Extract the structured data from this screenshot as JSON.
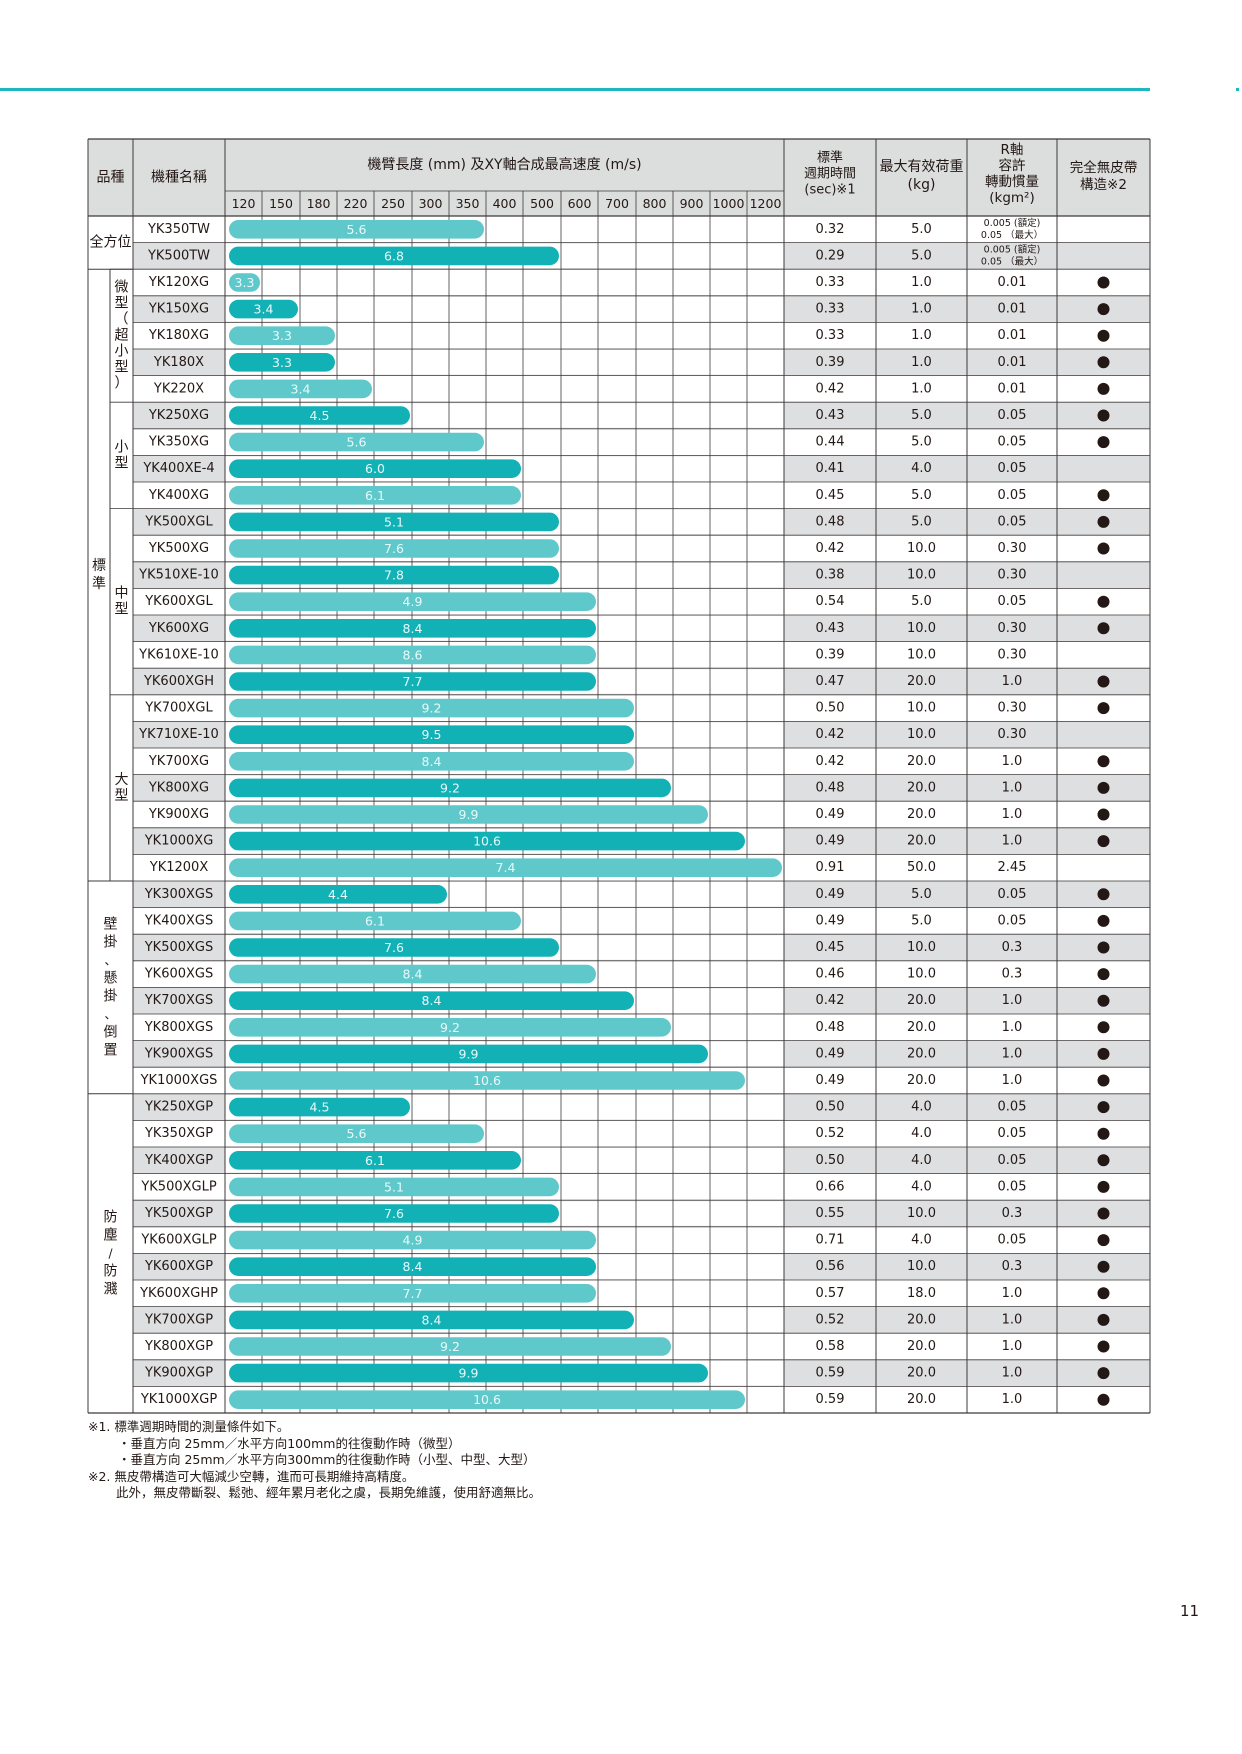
{
  "headers": {
    "category": "品種",
    "model": "機種名稱",
    "arm": "機臂長度 (mm) 及XY軸合成最高速度 (m/s)",
    "arm_ticks": [
      "120",
      "150",
      "180",
      "220",
      "250",
      "300",
      "350",
      "400",
      "500",
      "600",
      "700",
      "800",
      "900",
      "1000",
      "1200"
    ],
    "cycle": [
      "標準",
      "週期時間",
      "(sec)※1"
    ],
    "payload": [
      "最大有效荷重",
      "(kg)"
    ],
    "rinertia": [
      "R軸",
      "容許",
      "轉動慣量",
      "(kgm²)"
    ],
    "beltless": [
      "完全無皮帶",
      "構造※2"
    ]
  },
  "groups": [
    {
      "label": "全方位",
      "from": 0,
      "to": 1
    },
    {
      "label": "標準",
      "from": 2,
      "to": 24
    },
    {
      "label": "壁掛、懸掛、倒置",
      "from": 25,
      "to": 32
    },
    {
      "label": "防塵/防濺",
      "from": 33,
      "to": 44
    }
  ],
  "subgroups": [
    {
      "label": "微型（超小型）",
      "from": 2,
      "to": 6
    },
    {
      "label": "小型",
      "from": 7,
      "to": 10
    },
    {
      "label": "中型",
      "from": 11,
      "to": 17
    },
    {
      "label": "大型",
      "from": 18,
      "to": 24
    }
  ],
  "rows": [
    {
      "model": "YK350TW",
      "arm": 350,
      "speed": "5.6",
      "cycle": "0.32",
      "payload": "5.0",
      "inertia": [
        "0.005 (額定)",
        "0.05 （最大）"
      ],
      "beltless": false,
      "shade": "light"
    },
    {
      "model": "YK500TW",
      "arm": 500,
      "speed": "6.8",
      "cycle": "0.29",
      "payload": "5.0",
      "inertia": [
        "0.005 (額定)",
        "0.05 （最大）"
      ],
      "beltless": false,
      "shade": "dark"
    },
    {
      "model": "YK120XG",
      "arm": 120,
      "speed": "3.3",
      "cycle": "0.33",
      "payload": "1.0",
      "inertia": "0.01",
      "beltless": true,
      "shade": "light"
    },
    {
      "model": "YK150XG",
      "arm": 150,
      "speed": "3.4",
      "cycle": "0.33",
      "payload": "1.0",
      "inertia": "0.01",
      "beltless": true,
      "shade": "dark"
    },
    {
      "model": "YK180XG",
      "arm": 180,
      "speed": "3.3",
      "cycle": "0.33",
      "payload": "1.0",
      "inertia": "0.01",
      "beltless": true,
      "shade": "light"
    },
    {
      "model": "YK180X",
      "arm": 180,
      "speed": "3.3",
      "cycle": "0.39",
      "payload": "1.0",
      "inertia": "0.01",
      "beltless": true,
      "shade": "dark"
    },
    {
      "model": "YK220X",
      "arm": 220,
      "speed": "3.4",
      "cycle": "0.42",
      "payload": "1.0",
      "inertia": "0.01",
      "beltless": true,
      "shade": "light"
    },
    {
      "model": "YK250XG",
      "arm": 250,
      "speed": "4.5",
      "cycle": "0.43",
      "payload": "5.0",
      "inertia": "0.05",
      "beltless": true,
      "shade": "dark"
    },
    {
      "model": "YK350XG",
      "arm": 350,
      "speed": "5.6",
      "cycle": "0.44",
      "payload": "5.0",
      "inertia": "0.05",
      "beltless": true,
      "shade": "light"
    },
    {
      "model": "YK400XE-4",
      "arm": 400,
      "speed": "6.0",
      "cycle": "0.41",
      "payload": "4.0",
      "inertia": "0.05",
      "beltless": false,
      "shade": "dark"
    },
    {
      "model": "YK400XG",
      "arm": 400,
      "speed": "6.1",
      "cycle": "0.45",
      "payload": "5.0",
      "inertia": "0.05",
      "beltless": true,
      "shade": "light"
    },
    {
      "model": "YK500XGL",
      "arm": 500,
      "speed": "5.1",
      "cycle": "0.48",
      "payload": "5.0",
      "inertia": "0.05",
      "beltless": true,
      "shade": "dark"
    },
    {
      "model": "YK500XG",
      "arm": 500,
      "speed": "7.6",
      "cycle": "0.42",
      "payload": "10.0",
      "inertia": "0.30",
      "beltless": true,
      "shade": "light"
    },
    {
      "model": "YK510XE-10",
      "arm": 500,
      "speed": "7.8",
      "cycle": "0.38",
      "payload": "10.0",
      "inertia": "0.30",
      "beltless": false,
      "shade": "dark"
    },
    {
      "model": "YK600XGL",
      "arm": 600,
      "speed": "4.9",
      "cycle": "0.54",
      "payload": "5.0",
      "inertia": "0.05",
      "beltless": true,
      "shade": "light"
    },
    {
      "model": "YK600XG",
      "arm": 600,
      "speed": "8.4",
      "cycle": "0.43",
      "payload": "10.0",
      "inertia": "0.30",
      "beltless": true,
      "shade": "dark"
    },
    {
      "model": "YK610XE-10",
      "arm": 600,
      "speed": "8.6",
      "cycle": "0.39",
      "payload": "10.0",
      "inertia": "0.30",
      "beltless": false,
      "shade": "light"
    },
    {
      "model": "YK600XGH",
      "arm": 600,
      "speed": "7.7",
      "cycle": "0.47",
      "payload": "20.0",
      "inertia": "1.0",
      "beltless": true,
      "shade": "dark"
    },
    {
      "model": "YK700XGL",
      "arm": 700,
      "speed": "9.2",
      "cycle": "0.50",
      "payload": "10.0",
      "inertia": "0.30",
      "beltless": true,
      "shade": "light"
    },
    {
      "model": "YK710XE-10",
      "arm": 700,
      "speed": "9.5",
      "cycle": "0.42",
      "payload": "10.0",
      "inertia": "0.30",
      "beltless": false,
      "shade": "dark"
    },
    {
      "model": "YK700XG",
      "arm": 700,
      "speed": "8.4",
      "cycle": "0.42",
      "payload": "20.0",
      "inertia": "1.0",
      "beltless": true,
      "shade": "light"
    },
    {
      "model": "YK800XG",
      "arm": 800,
      "speed": "9.2",
      "cycle": "0.48",
      "payload": "20.0",
      "inertia": "1.0",
      "beltless": true,
      "shade": "dark"
    },
    {
      "model": "YK900XG",
      "arm": 900,
      "speed": "9.9",
      "cycle": "0.49",
      "payload": "20.0",
      "inertia": "1.0",
      "beltless": true,
      "shade": "light"
    },
    {
      "model": "YK1000XG",
      "arm": 1000,
      "speed": "10.6",
      "cycle": "0.49",
      "payload": "20.0",
      "inertia": "1.0",
      "beltless": true,
      "shade": "dark"
    },
    {
      "model": "YK1200X",
      "arm": 1200,
      "speed": "7.4",
      "cycle": "0.91",
      "payload": "50.0",
      "inertia": "2.45",
      "beltless": false,
      "shade": "light"
    },
    {
      "model": "YK300XGS",
      "arm": 300,
      "speed": "4.4",
      "cycle": "0.49",
      "payload": "5.0",
      "inertia": "0.05",
      "beltless": true,
      "shade": "dark"
    },
    {
      "model": "YK400XGS",
      "arm": 400,
      "speed": "6.1",
      "cycle": "0.49",
      "payload": "5.0",
      "inertia": "0.05",
      "beltless": true,
      "shade": "light"
    },
    {
      "model": "YK500XGS",
      "arm": 500,
      "speed": "7.6",
      "cycle": "0.45",
      "payload": "10.0",
      "inertia": "0.3",
      "beltless": true,
      "shade": "dark"
    },
    {
      "model": "YK600XGS",
      "arm": 600,
      "speed": "8.4",
      "cycle": "0.46",
      "payload": "10.0",
      "inertia": "0.3",
      "beltless": true,
      "shade": "light"
    },
    {
      "model": "YK700XGS",
      "arm": 700,
      "speed": "8.4",
      "cycle": "0.42",
      "payload": "20.0",
      "inertia": "1.0",
      "beltless": true,
      "shade": "dark"
    },
    {
      "model": "YK800XGS",
      "arm": 800,
      "speed": "9.2",
      "cycle": "0.48",
      "payload": "20.0",
      "inertia": "1.0",
      "beltless": true,
      "shade": "light"
    },
    {
      "model": "YK900XGS",
      "arm": 900,
      "speed": "9.9",
      "cycle": "0.49",
      "payload": "20.0",
      "inertia": "1.0",
      "beltless": true,
      "shade": "dark"
    },
    {
      "model": "YK1000XGS",
      "arm": 1000,
      "speed": "10.6",
      "cycle": "0.49",
      "payload": "20.0",
      "inertia": "1.0",
      "beltless": true,
      "shade": "light"
    },
    {
      "model": "YK250XGP",
      "arm": 250,
      "speed": "4.5",
      "cycle": "0.50",
      "payload": "4.0",
      "inertia": "0.05",
      "beltless": true,
      "shade": "dark"
    },
    {
      "model": "YK350XGP",
      "arm": 350,
      "speed": "5.6",
      "cycle": "0.52",
      "payload": "4.0",
      "inertia": "0.05",
      "beltless": true,
      "shade": "light"
    },
    {
      "model": "YK400XGP",
      "arm": 400,
      "speed": "6.1",
      "cycle": "0.50",
      "payload": "4.0",
      "inertia": "0.05",
      "beltless": true,
      "shade": "dark"
    },
    {
      "model": "YK500XGLP",
      "arm": 500,
      "speed": "5.1",
      "cycle": "0.66",
      "payload": "4.0",
      "inertia": "0.05",
      "beltless": true,
      "shade": "light"
    },
    {
      "model": "YK500XGP",
      "arm": 500,
      "speed": "7.6",
      "cycle": "0.55",
      "payload": "10.0",
      "inertia": "0.3",
      "beltless": true,
      "shade": "dark"
    },
    {
      "model": "YK600XGLP",
      "arm": 600,
      "speed": "4.9",
      "cycle": "0.71",
      "payload": "4.0",
      "inertia": "0.05",
      "beltless": true,
      "shade": "light"
    },
    {
      "model": "YK600XGP",
      "arm": 600,
      "speed": "8.4",
      "cycle": "0.56",
      "payload": "10.0",
      "inertia": "0.3",
      "beltless": true,
      "shade": "dark"
    },
    {
      "model": "YK600XGHP",
      "arm": 600,
      "speed": "7.7",
      "cycle": "0.57",
      "payload": "18.0",
      "inertia": "1.0",
      "beltless": true,
      "shade": "light"
    },
    {
      "model": "YK700XGP",
      "arm": 700,
      "speed": "8.4",
      "cycle": "0.52",
      "payload": "20.0",
      "inertia": "1.0",
      "beltless": true,
      "shade": "dark"
    },
    {
      "model": "YK800XGP",
      "arm": 800,
      "speed": "9.2",
      "cycle": "0.58",
      "payload": "20.0",
      "inertia": "1.0",
      "beltless": true,
      "shade": "light"
    },
    {
      "model": "YK900XGP",
      "arm": 900,
      "speed": "9.9",
      "cycle": "0.59",
      "payload": "20.0",
      "inertia": "1.0",
      "beltless": true,
      "shade": "dark"
    },
    {
      "model": "YK1000XGP",
      "arm": 1000,
      "speed": "10.6",
      "cycle": "0.59",
      "payload": "20.0",
      "inertia": "1.0",
      "beltless": true,
      "shade": "light"
    }
  ],
  "colors": {
    "bar_light": "#5fc8cb",
    "bar_dark": "#11b1b6",
    "accent_line": "#1fb6c3",
    "row_gray": "#dedfe0",
    "header_gray": "#dcdddd"
  },
  "footnotes": [
    "※1. 標準週期時間的測量條件如下。",
    "・垂直方向 25mm／水平方向100mm的往復動作時（微型）",
    "・垂直方向 25mm／水平方向300mm的往復動作時（小型、中型、大型）",
    "※2. 無皮帶構造可大幅減少空轉，進而可長期維持高精度。",
    "此外，無皮帶斷裂、鬆弛、經年累月老化之虞，長期免維護，使用舒適無比。"
  ],
  "page_number": "11"
}
